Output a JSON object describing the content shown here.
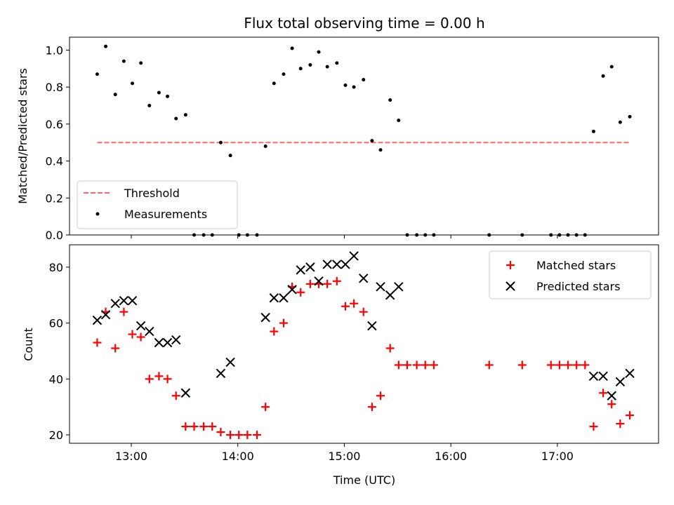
{
  "chart_data": [
    {
      "type": "scatter",
      "title": "Flux total observing time = 0.00 h",
      "xlabel": "",
      "ylabel": "Matched/Predicted stars",
      "ylim": [
        0,
        1.07
      ],
      "yticks": [
        "0.0",
        "0.2",
        "0.4",
        "0.6",
        "0.8",
        "1.0"
      ],
      "ytick_values": [
        0,
        0.2,
        0.4,
        0.6,
        0.8,
        1.0
      ],
      "xlim_hours": [
        12.42,
        17.95
      ],
      "xtick_hours": [
        13,
        14,
        15,
        16,
        17
      ],
      "legend_placement": "lower-left",
      "threshold": {
        "name": "Threshold",
        "value": 0.5,
        "x_range_hours": [
          12.68,
          17.68
        ],
        "color": "#ff6666"
      },
      "series": [
        {
          "name": "Measurements",
          "color": "#000000",
          "x_hours": [
            12.68,
            12.76,
            12.85,
            12.93,
            13.01,
            13.09,
            13.17,
            13.26,
            13.34,
            13.42,
            13.51,
            13.59,
            13.68,
            13.76,
            13.84,
            13.93,
            14.01,
            14.09,
            14.18,
            14.26,
            14.34,
            14.43,
            14.51,
            14.59,
            14.68,
            14.76,
            14.84,
            14.93,
            15.01,
            15.09,
            15.18,
            15.26,
            15.34,
            15.43,
            15.51,
            15.59,
            15.68,
            15.76,
            15.84,
            16.36,
            16.67,
            16.94,
            17.02,
            17.1,
            17.18,
            17.26,
            17.34,
            17.43,
            17.51,
            17.59,
            17.68
          ],
          "values": [
            0.87,
            1.02,
            0.76,
            0.94,
            0.82,
            0.93,
            0.7,
            0.77,
            0.75,
            0.63,
            0.65,
            0.0,
            0.0,
            0.0,
            0.5,
            0.43,
            0.0,
            0.0,
            0.0,
            0.48,
            0.82,
            0.87,
            1.01,
            0.9,
            0.92,
            0.99,
            0.91,
            0.93,
            0.81,
            0.8,
            0.84,
            0.51,
            0.46,
            0.73,
            0.62,
            0.0,
            0.0,
            0.0,
            0.0,
            0.0,
            0.0,
            0.0,
            0.0,
            0.0,
            0.0,
            0.0,
            0.56,
            0.86,
            0.91,
            0.61,
            0.64
          ]
        }
      ]
    },
    {
      "type": "scatter",
      "title": "",
      "xlabel": "Time (UTC)",
      "ylabel": "Count",
      "ylim": [
        17,
        88
      ],
      "yticks": [
        "20",
        "40",
        "60",
        "80"
      ],
      "ytick_values": [
        20,
        40,
        60,
        80
      ],
      "xlim_hours": [
        12.42,
        17.95
      ],
      "xtick_hours": [
        13,
        14,
        15,
        16,
        17
      ],
      "xtick_labels": [
        "13:00",
        "14:00",
        "15:00",
        "16:00",
        "17:00"
      ],
      "legend_placement": "upper-right",
      "series": [
        {
          "name": "Matched stars",
          "marker": "plus",
          "color": "#ff0000",
          "x_hours": [
            12.68,
            12.76,
            12.85,
            12.93,
            13.01,
            13.09,
            13.17,
            13.26,
            13.34,
            13.42,
            13.51,
            13.59,
            13.68,
            13.76,
            13.84,
            13.93,
            14.01,
            14.09,
            14.18,
            14.26,
            14.34,
            14.43,
            14.51,
            14.59,
            14.68,
            14.76,
            14.84,
            14.93,
            15.01,
            15.09,
            15.18,
            15.26,
            15.34,
            15.43,
            15.51,
            15.59,
            15.68,
            15.76,
            15.84,
            16.36,
            16.67,
            16.94,
            17.02,
            17.1,
            17.18,
            17.26,
            17.34,
            17.43,
            17.51,
            17.59,
            17.68
          ],
          "values": [
            53,
            64,
            51,
            64,
            56,
            55,
            40,
            41,
            40,
            34,
            23,
            23,
            23,
            23,
            21,
            20,
            20,
            20,
            20,
            30,
            57,
            60,
            73,
            71,
            74,
            74,
            74,
            75,
            66,
            67,
            64,
            30,
            34,
            51,
            45,
            45,
            45,
            45,
            45,
            45,
            45,
            45,
            45,
            45,
            45,
            45,
            23,
            35,
            31,
            24,
            27
          ]
        },
        {
          "name": "Predicted stars",
          "marker": "x",
          "color": "#000000",
          "x_hours": [
            12.68,
            12.76,
            12.85,
            12.93,
            13.01,
            13.09,
            13.17,
            13.26,
            13.34,
            13.42,
            13.51,
            13.84,
            13.93,
            14.26,
            14.34,
            14.43,
            14.51,
            14.59,
            14.68,
            14.76,
            14.84,
            14.93,
            15.01,
            15.09,
            15.18,
            15.26,
            15.34,
            15.43,
            15.51,
            17.34,
            17.43,
            17.51,
            17.59,
            17.68
          ],
          "values": [
            61,
            63,
            67,
            68,
            68,
            59,
            57,
            53,
            53,
            54,
            35,
            42,
            46,
            62,
            69,
            69,
            72,
            79,
            80,
            75,
            81,
            81,
            81,
            84,
            76,
            59,
            73,
            70,
            73,
            41,
            41,
            34,
            39,
            42
          ]
        }
      ]
    }
  ]
}
